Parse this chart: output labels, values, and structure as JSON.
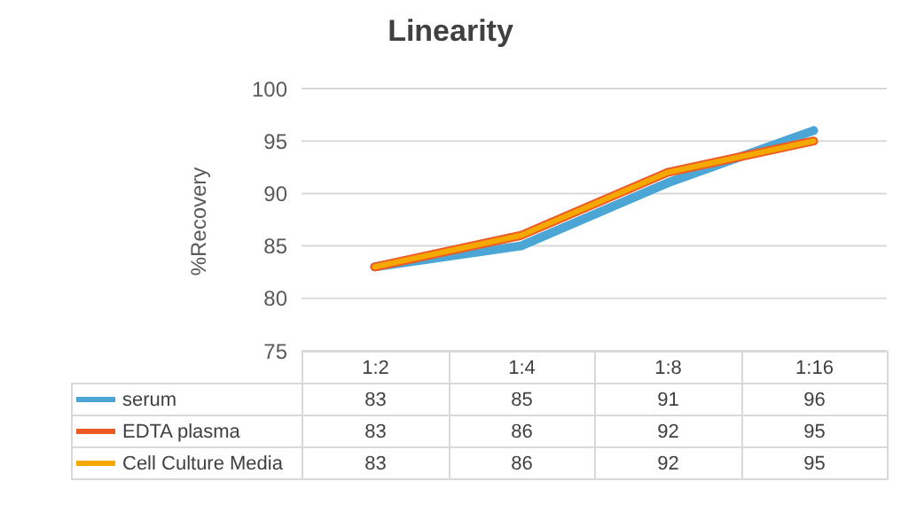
{
  "chart_data": {
    "type": "line",
    "title": "Linearity",
    "ylabel": "%Recovery",
    "categories": [
      "1:2",
      "1:4",
      "1:8",
      "1:16"
    ],
    "series": [
      {
        "name": "serum",
        "color": "#4ba6d6",
        "values": [
          83,
          85,
          91,
          96
        ]
      },
      {
        "name": "EDTA plasma",
        "color": "#ee5a24",
        "values": [
          83,
          86,
          92,
          95
        ]
      },
      {
        "name": "Cell Culture Media",
        "color": "#f5a800",
        "values": [
          83,
          86,
          92,
          95
        ]
      }
    ],
    "ylim": [
      75,
      100
    ],
    "yticks": [
      75,
      80,
      85,
      90,
      95,
      100
    ],
    "grid": "y",
    "legend": "bottom",
    "marker": "none",
    "line_style": "solid",
    "data_labels": true
  }
}
